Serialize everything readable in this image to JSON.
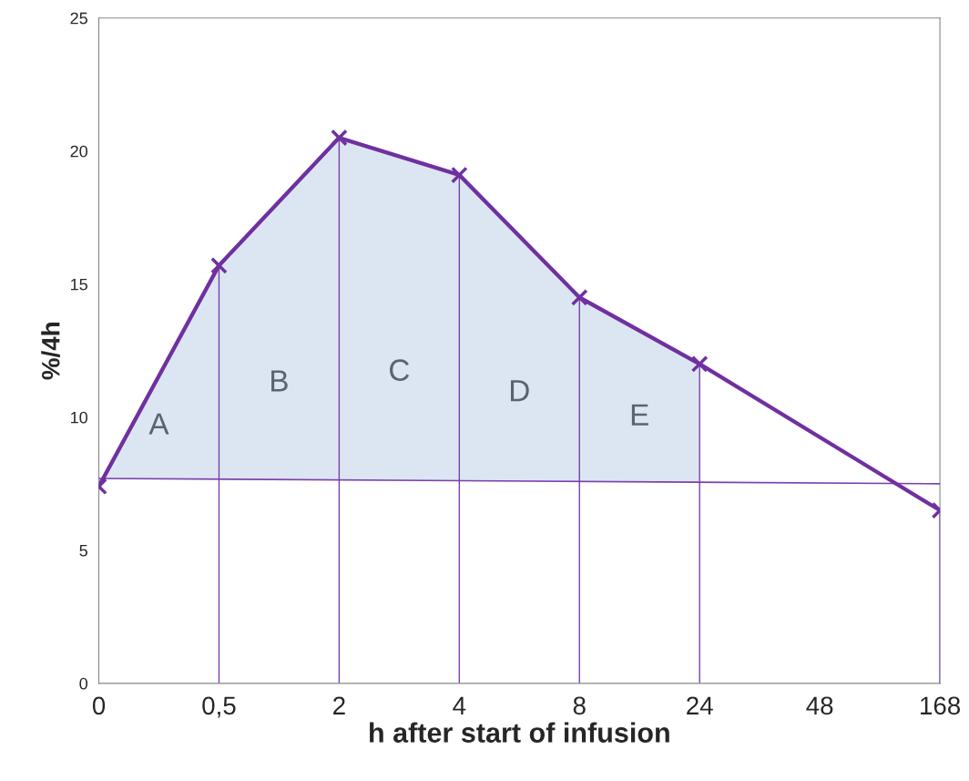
{
  "chart_data": {
    "type": "line",
    "xlabel": "h after start of infusion",
    "ylabel": "%/4h",
    "categories": [
      "0",
      "0,5",
      "2",
      "4",
      "8",
      "24",
      "48",
      "168"
    ],
    "series": [
      {
        "type": "area",
        "color": "#dce6f2",
        "x": [
          "0",
          "0,5",
          "2",
          "4",
          "8",
          "24"
        ],
        "values": [
          7.4,
          15.7,
          20.5,
          19.1,
          14.5,
          12.0
        ]
      },
      {
        "type": "line",
        "color": "#7a3fae",
        "x": [
          "0",
          "168"
        ],
        "values": [
          7.7,
          7.5
        ],
        "marker": "none"
      },
      {
        "color": "#7030a0",
        "x": [
          "0",
          "0,5",
          "2",
          "4",
          "8",
          "24",
          "168"
        ],
        "values": [
          7.4,
          15.7,
          20.5,
          19.1,
          14.5,
          12.0,
          6.5
        ],
        "marker": "cross"
      }
    ],
    "ref_lines": [
      {
        "axis": "x",
        "value": "0,5",
        "color": "#7a3fae"
      },
      {
        "axis": "x",
        "value": "2",
        "color": "#7a3fae"
      },
      {
        "axis": "x",
        "value": "4",
        "color": "#7a3fae"
      },
      {
        "axis": "x",
        "value": "8",
        "color": "#7a3fae"
      },
      {
        "axis": "x",
        "value": "24",
        "color": "#7a3fae"
      },
      {
        "axis": "x",
        "value": "168",
        "color": "#7a3fae"
      }
    ],
    "annotations": [
      "A",
      "B",
      "C",
      "D",
      "E"
    ],
    "ylim": [
      0,
      25
    ],
    "yticks": [
      0,
      5,
      10,
      15,
      20,
      25
    ],
    "grid": false,
    "legend": false
  }
}
